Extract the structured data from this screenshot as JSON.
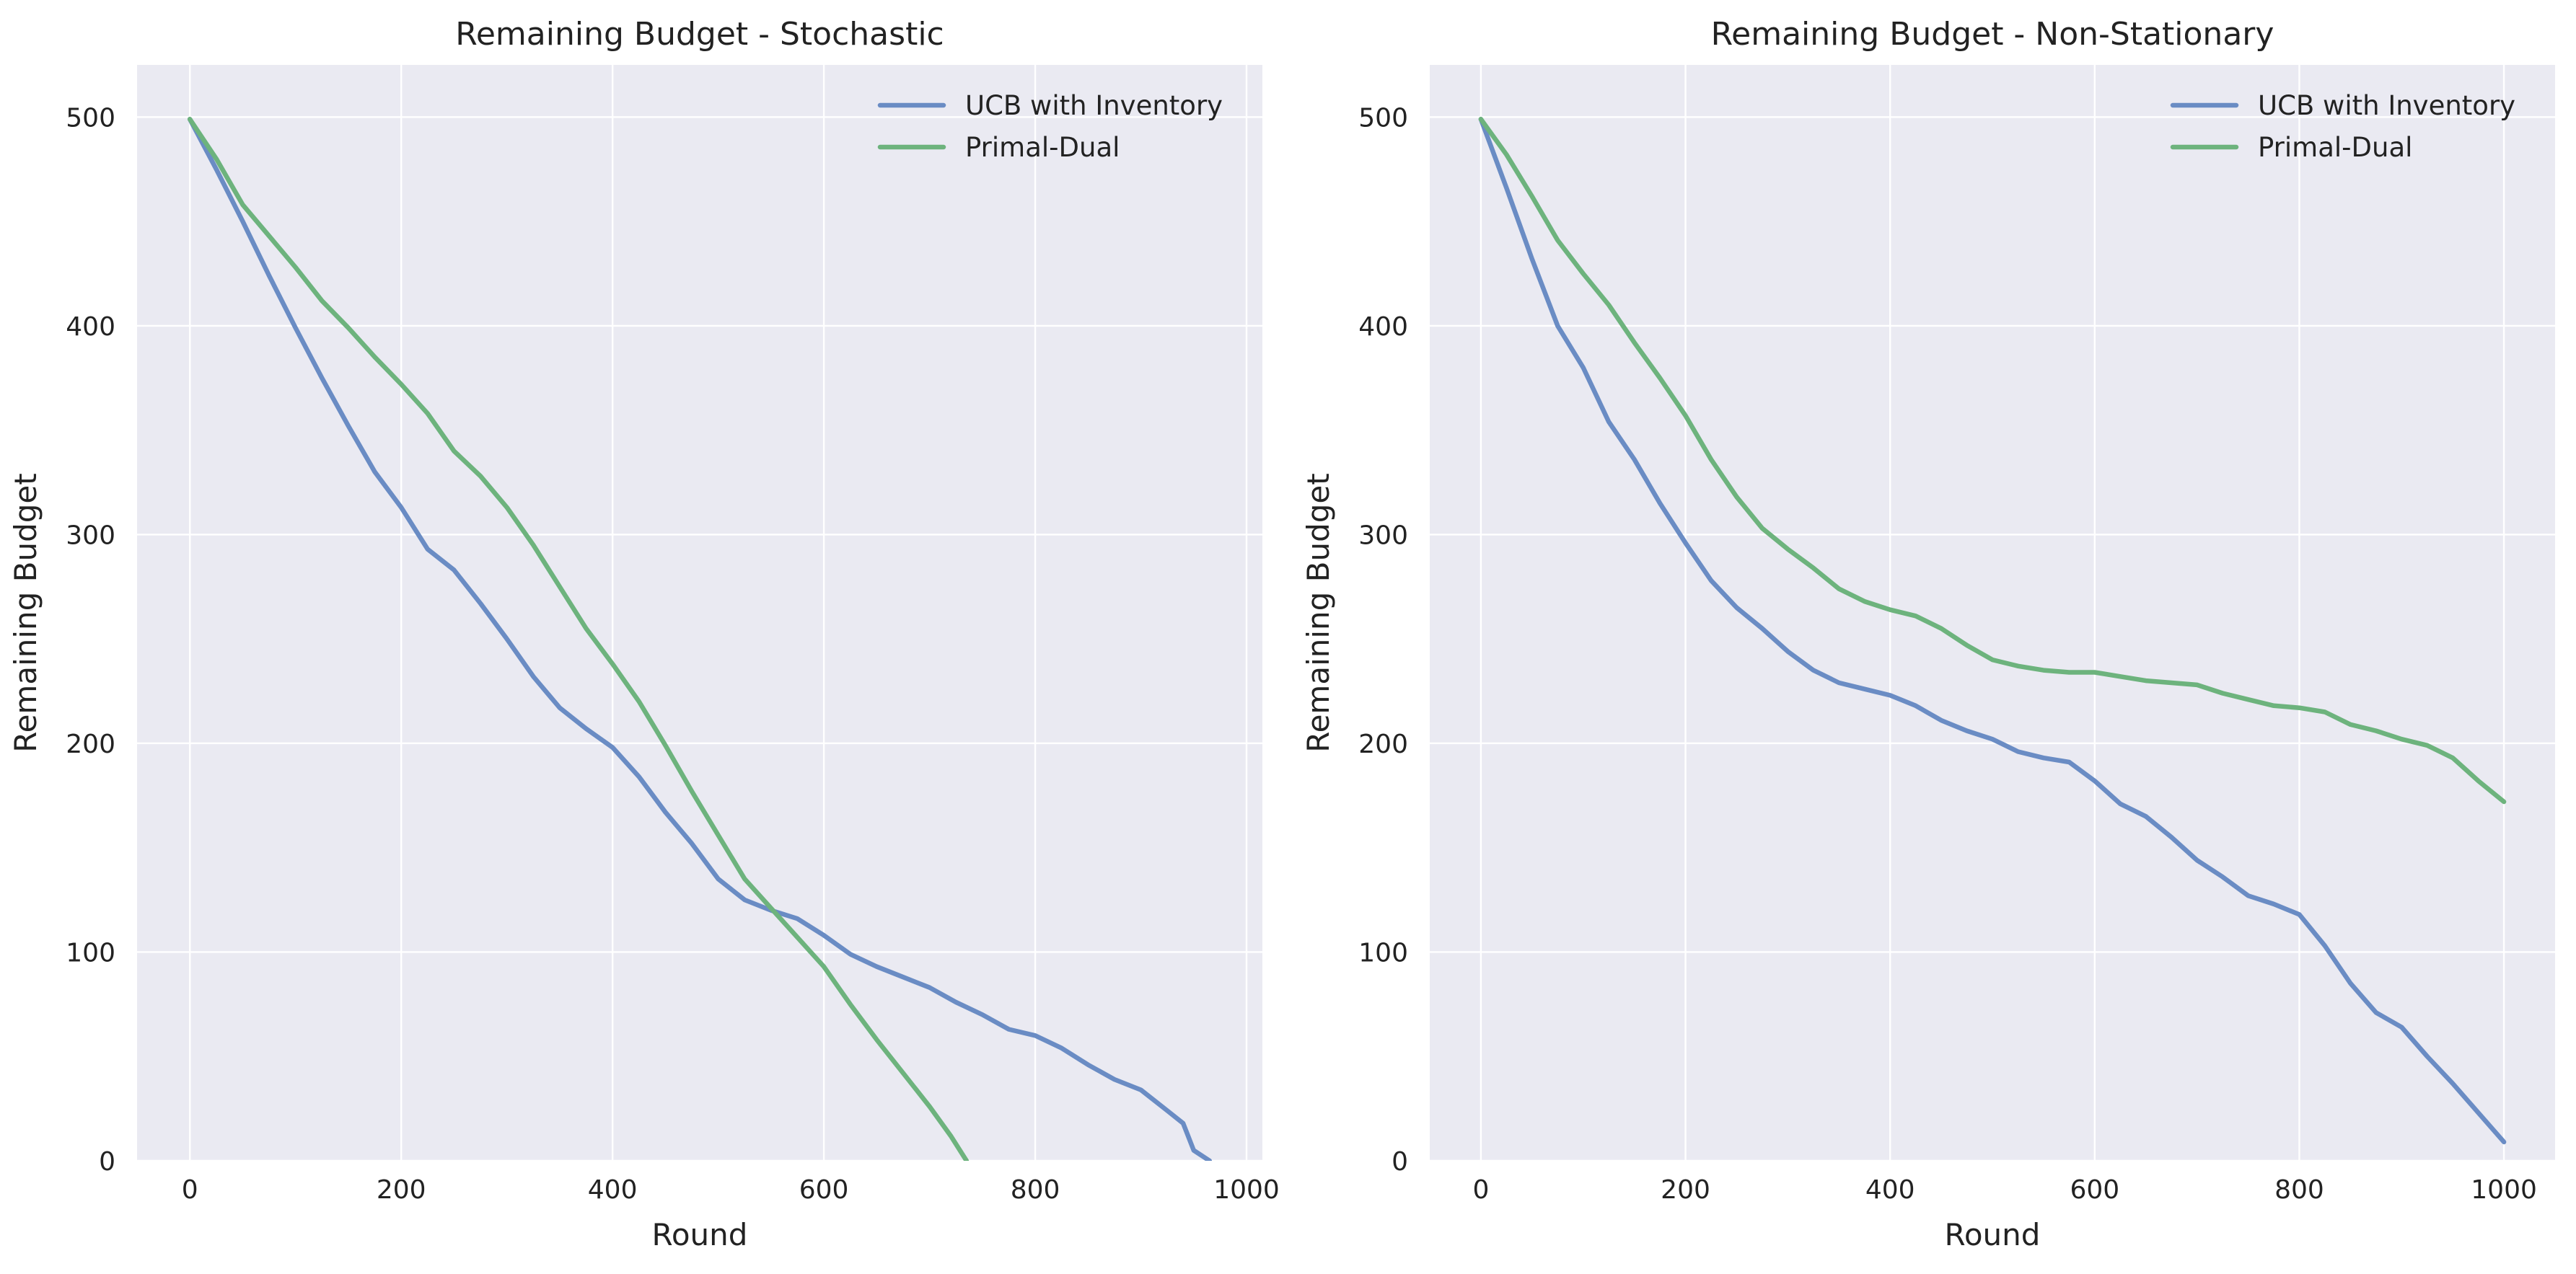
{
  "chart_data": [
    {
      "type": "line",
      "title": "Remaining Budget - Stochastic",
      "xlabel": "Round",
      "ylabel": "Remaining Budget",
      "xlim": [
        -50,
        1015
      ],
      "ylim": [
        0,
        525
      ],
      "xticks": [
        0,
        200,
        400,
        600,
        800,
        1000
      ],
      "yticks": [
        0,
        100,
        200,
        300,
        400,
        500
      ],
      "grid": true,
      "legend_position": "upper right",
      "series": [
        {
          "name": "UCB with Inventory",
          "color": "#6a8cc4",
          "x": [
            0,
            25,
            50,
            75,
            100,
            125,
            150,
            175,
            200,
            225,
            250,
            275,
            300,
            325,
            350,
            375,
            400,
            425,
            450,
            475,
            500,
            525,
            550,
            575,
            600,
            625,
            650,
            675,
            700,
            725,
            750,
            775,
            800,
            825,
            850,
            875,
            900,
            925,
            940,
            950,
            965
          ],
          "y": [
            499,
            475,
            450,
            424,
            399,
            375,
            352,
            330,
            313,
            293,
            283,
            267,
            250,
            232,
            217,
            207,
            198,
            184,
            167,
            152,
            135,
            125,
            120,
            116,
            108,
            99,
            93,
            88,
            83,
            76,
            70,
            63,
            60,
            54,
            46,
            39,
            34,
            24,
            18,
            5,
            0
          ]
        },
        {
          "name": "Primal-Dual",
          "color": "#6db37d",
          "x": [
            0,
            25,
            50,
            75,
            100,
            125,
            150,
            175,
            200,
            225,
            250,
            275,
            300,
            325,
            350,
            375,
            400,
            425,
            450,
            475,
            500,
            525,
            550,
            575,
            600,
            625,
            650,
            675,
            700,
            720,
            735
          ],
          "y": [
            499,
            480,
            458,
            443,
            428,
            412,
            399,
            385,
            372,
            358,
            340,
            328,
            313,
            295,
            275,
            255,
            238,
            220,
            199,
            177,
            156,
            135,
            121,
            107,
            93,
            75,
            58,
            42,
            26,
            12,
            0
          ]
        }
      ]
    },
    {
      "type": "line",
      "title": "Remaining Budget - Non-Stationary",
      "xlabel": "Round",
      "ylabel": "Remaining Budget",
      "xlim": [
        -50,
        1050
      ],
      "ylim": [
        0,
        525
      ],
      "xticks": [
        0,
        200,
        400,
        600,
        800,
        1000
      ],
      "yticks": [
        0,
        100,
        200,
        300,
        400,
        500
      ],
      "grid": true,
      "legend_position": "upper right",
      "series": [
        {
          "name": "UCB with Inventory",
          "color": "#6a8cc4",
          "x": [
            0,
            25,
            50,
            75,
            100,
            125,
            150,
            175,
            200,
            225,
            250,
            275,
            300,
            325,
            350,
            375,
            400,
            425,
            450,
            475,
            500,
            525,
            550,
            575,
            600,
            625,
            650,
            675,
            700,
            725,
            750,
            775,
            800,
            825,
            850,
            875,
            900,
            925,
            950,
            975,
            1000
          ],
          "y": [
            499,
            466,
            432,
            400,
            380,
            354,
            336,
            315,
            296,
            278,
            265,
            255,
            244,
            235,
            229,
            226,
            223,
            218,
            211,
            206,
            202,
            196,
            193,
            191,
            182,
            171,
            165,
            155,
            144,
            136,
            127,
            123,
            118,
            103,
            85,
            71,
            64,
            50,
            37,
            23,
            9
          ]
        },
        {
          "name": "Primal-Dual",
          "color": "#6db37d",
          "x": [
            0,
            25,
            50,
            75,
            100,
            125,
            150,
            175,
            200,
            225,
            250,
            275,
            300,
            325,
            350,
            375,
            400,
            425,
            450,
            475,
            500,
            525,
            550,
            575,
            600,
            625,
            650,
            675,
            700,
            725,
            750,
            775,
            800,
            825,
            850,
            875,
            900,
            925,
            950,
            975,
            1000
          ],
          "y": [
            499,
            482,
            462,
            441,
            425,
            410,
            392,
            375,
            357,
            336,
            318,
            303,
            293,
            284,
            274,
            268,
            264,
            261,
            255,
            247,
            240,
            237,
            235,
            234,
            234,
            232,
            230,
            229,
            228,
            224,
            221,
            218,
            217,
            215,
            209,
            206,
            202,
            199,
            193,
            182,
            172
          ]
        }
      ]
    }
  ]
}
